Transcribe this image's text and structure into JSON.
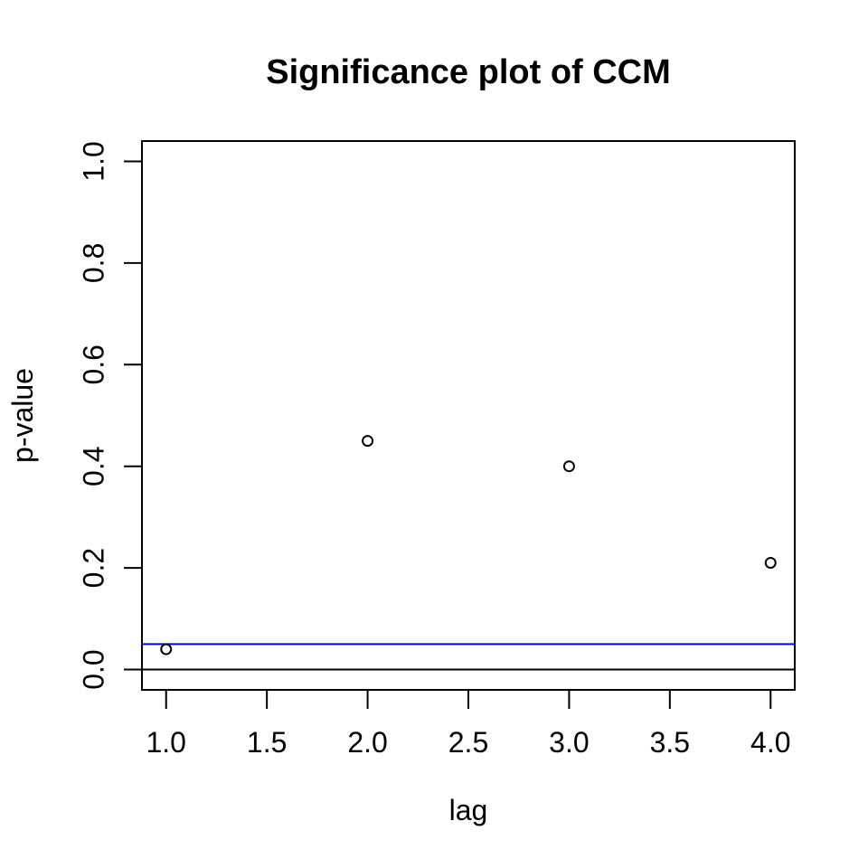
{
  "chart_data": {
    "type": "scatter",
    "title": "Significance plot of CCM",
    "xlabel": "lag",
    "ylabel": "p-value",
    "series": [
      {
        "name": "ccm-p-values",
        "x": [
          1,
          2,
          3,
          4
        ],
        "y": [
          0.04,
          0.45,
          0.4,
          0.21
        ]
      }
    ],
    "xlim": [
      1,
      4
    ],
    "ylim": [
      0,
      1
    ],
    "axis_expansion": 0.04,
    "xticks": [
      {
        "v": 1,
        "label": "1.0"
      },
      {
        "v": 1.5,
        "label": "1.5"
      },
      {
        "v": 2,
        "label": "2.0"
      },
      {
        "v": 2.5,
        "label": "2.5"
      },
      {
        "v": 3,
        "label": "3.0"
      },
      {
        "v": 3.5,
        "label": "3.5"
      },
      {
        "v": 4,
        "label": "4.0"
      }
    ],
    "yticks": [
      {
        "v": 0,
        "label": "0.0"
      },
      {
        "v": 0.2,
        "label": "0.2"
      },
      {
        "v": 0.4,
        "label": "0.4"
      },
      {
        "v": 0.6,
        "label": "0.6"
      },
      {
        "v": 0.8,
        "label": "0.8"
      },
      {
        "v": 1,
        "label": "1.0"
      }
    ],
    "grid": false,
    "legend_position": "none",
    "reference_lines": [
      {
        "y": 0.05,
        "color": "#0000FF",
        "name": "significance-threshold-line"
      },
      {
        "y": 0,
        "color": "#000000",
        "name": "zero-baseline-line"
      }
    ],
    "marker": {
      "shape": "open-circle",
      "stroke": "#000000",
      "fill": "none"
    },
    "colors": {
      "background": "#FFFFFF",
      "frame": "#000000",
      "text": "#000000",
      "threshold_line": "#0000FF"
    }
  }
}
